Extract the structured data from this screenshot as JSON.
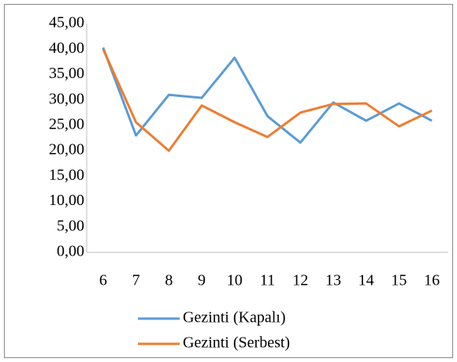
{
  "chart_data": {
    "type": "line",
    "categories": [
      "6",
      "7",
      "8",
      "9",
      "10",
      "11",
      "12",
      "13",
      "14",
      "15",
      "16"
    ],
    "series": [
      {
        "name": "Gezinti (Kapalı)",
        "color": "#5b9bd5",
        "values": [
          40.3,
          23.0,
          31.0,
          30.4,
          38.3,
          26.8,
          21.6,
          29.5,
          25.9,
          29.3,
          25.9
        ]
      },
      {
        "name": "Gezinti (Serbest)",
        "color": "#ed7d31",
        "values": [
          40.0,
          25.6,
          20.0,
          28.9,
          25.6,
          22.7,
          27.5,
          29.2,
          29.3,
          24.8,
          27.9
        ]
      }
    ],
    "ylim": [
      0,
      45
    ],
    "yticks": [
      {
        "value": 0,
        "label": "0,00"
      },
      {
        "value": 5,
        "label": "5,00"
      },
      {
        "value": 10,
        "label": "10,00"
      },
      {
        "value": 15,
        "label": "15,00"
      },
      {
        "value": 20,
        "label": "20,00"
      },
      {
        "value": 25,
        "label": "25,00"
      },
      {
        "value": 30,
        "label": "30,00"
      },
      {
        "value": 35,
        "label": "35,00"
      },
      {
        "value": 40,
        "label": "40,00"
      },
      {
        "value": 45,
        "label": "45,00"
      }
    ],
    "grid": false,
    "legend": "bottom"
  }
}
